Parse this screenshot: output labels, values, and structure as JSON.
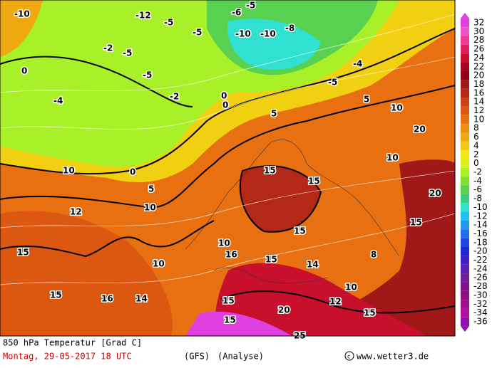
{
  "title": "850 hPa Temperatur [Grad C]",
  "date": "Montag, 29-05-2017  18 UTC",
  "model": "(GFS)",
  "run": "(Analyse)",
  "credit": "www.wetter3.de",
  "colorbar": {
    "labels": [
      32,
      30,
      28,
      26,
      24,
      22,
      20,
      18,
      16,
      14,
      12,
      10,
      8,
      6,
      4,
      2,
      0,
      -2,
      -4,
      -6,
      -8,
      -10,
      -12,
      -14,
      -16,
      -18,
      -20,
      -22,
      -24,
      -26,
      -28,
      -30,
      -32,
      -34,
      -36
    ],
    "colors": [
      "#e040e0",
      "#f050c8",
      "#f03c96",
      "#e0205a",
      "#c8102d",
      "#a80020",
      "#900014",
      "#a01818",
      "#b42818",
      "#cc4012",
      "#dc5810",
      "#e87010",
      "#f08c10",
      "#f0a810",
      "#f0c814",
      "#f0e810",
      "#d8f020",
      "#a8f028",
      "#80e030",
      "#58d050",
      "#38d080",
      "#30e0d0",
      "#20c0f0",
      "#2098f0",
      "#2070f0",
      "#2048e0",
      "#2028d0",
      "#4020c0",
      "#5c20b0",
      "#7020a0",
      "#801090",
      "#901080",
      "#a01090",
      "#b010a0",
      "#9010b0"
    ]
  },
  "map_labels": [
    -10,
    -5,
    -10,
    -5,
    -10,
    -5,
    -8,
    -12,
    -6,
    -5,
    -2,
    -5,
    -4,
    0,
    -2,
    0,
    0,
    5,
    -5,
    -4,
    5,
    10,
    0,
    5,
    10,
    15,
    15,
    16,
    14,
    10,
    12,
    10,
    10,
    15,
    15,
    15,
    15,
    16,
    20,
    15,
    15,
    20,
    25,
    20,
    15,
    10,
    10,
    15,
    12,
    14,
    8
  ]
}
